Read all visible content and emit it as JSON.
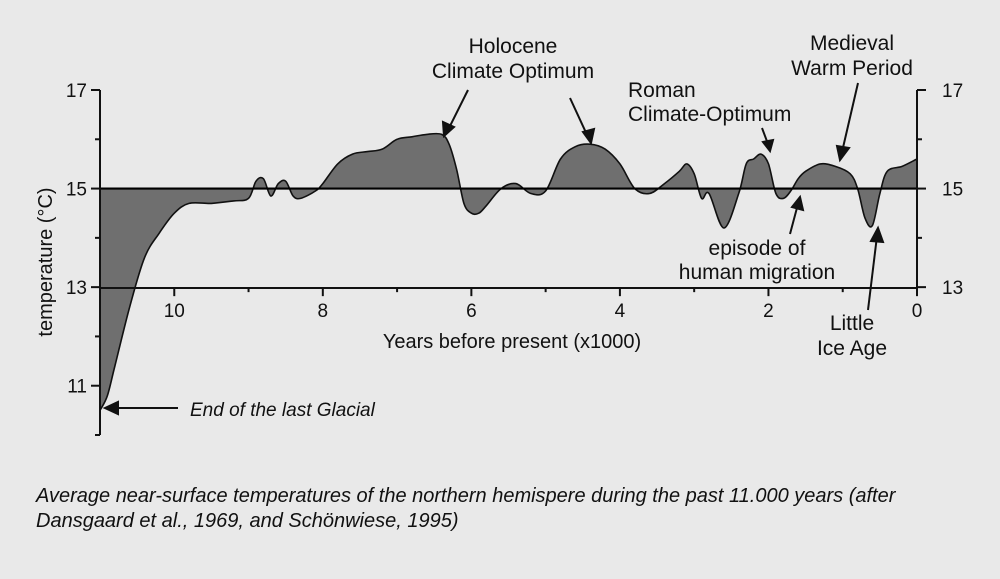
{
  "chart_data": {
    "type": "area",
    "xlabel": "Years before present (x1000)",
    "ylabel": "temperature (°C)",
    "xlim": [
      11,
      0
    ],
    "ylim": [
      10,
      17
    ],
    "baseline": 15,
    "x_ticks": [
      "10",
      "8",
      "6",
      "4",
      "2",
      "0"
    ],
    "y_ticks_left": [
      "17",
      "15",
      "13",
      "11"
    ],
    "y_ticks_right": [
      "17",
      "15",
      "13"
    ],
    "fill_color": "#6f6f6f",
    "series": [
      {
        "x": [
          11.0,
          10.9,
          10.8,
          10.6,
          10.4,
          10.2,
          10.0,
          9.8,
          9.5,
          9.2,
          9.0,
          8.9,
          8.8,
          8.7,
          8.6,
          8.5,
          8.4,
          8.3,
          8.1,
          8.0,
          7.8,
          7.6,
          7.4,
          7.2,
          7.0,
          6.8,
          6.6,
          6.4,
          6.3,
          6.2,
          6.1,
          6.0,
          5.9,
          5.8,
          5.6,
          5.4,
          5.2,
          5.0,
          4.8,
          4.6,
          4.4,
          4.2,
          4.0,
          3.8,
          3.6,
          3.4,
          3.2,
          3.1,
          3.0,
          2.9,
          2.8,
          2.6,
          2.4,
          2.3,
          2.2,
          2.1,
          2.0,
          1.9,
          1.8,
          1.7,
          1.6,
          1.5,
          1.3,
          1.1,
          0.9,
          0.8,
          0.7,
          0.6,
          0.5,
          0.4,
          0.2,
          0.0
        ],
        "y": [
          10.5,
          10.8,
          11.4,
          12.6,
          13.6,
          14.1,
          14.5,
          14.7,
          14.7,
          14.75,
          14.8,
          15.15,
          15.2,
          14.85,
          15.1,
          15.15,
          14.85,
          14.8,
          14.95,
          15.1,
          15.5,
          15.7,
          15.75,
          15.8,
          16.0,
          16.05,
          16.1,
          16.1,
          15.9,
          15.4,
          14.7,
          14.5,
          14.5,
          14.65,
          15.0,
          15.1,
          14.9,
          14.95,
          15.6,
          15.85,
          15.9,
          15.8,
          15.5,
          15.0,
          14.9,
          15.1,
          15.35,
          15.5,
          15.3,
          14.8,
          14.9,
          14.2,
          14.9,
          15.5,
          15.6,
          15.7,
          15.5,
          14.9,
          14.8,
          14.95,
          15.2,
          15.35,
          15.5,
          15.45,
          15.3,
          15.0,
          14.4,
          14.25,
          14.9,
          15.35,
          15.45,
          15.6
        ]
      }
    ],
    "annotations": {
      "holocene_line1": "Holocene",
      "holocene_line2": "Climate Optimum",
      "roman_line1": "Roman",
      "roman_line2": "Climate-Optimum",
      "medieval_line1": "Medieval",
      "medieval_line2": "Warm Period",
      "migration_line1": "episode of",
      "migration_line2": "human migration",
      "ice_line1": "Little",
      "ice_line2": "Ice Age",
      "glacial": "End of the last Glacial"
    },
    "caption": "Average near-surface temperatures of the northern hemispere during the past 11.000 years (after Dansgaard et al., 1969, and Schönwiese, 1995)"
  }
}
